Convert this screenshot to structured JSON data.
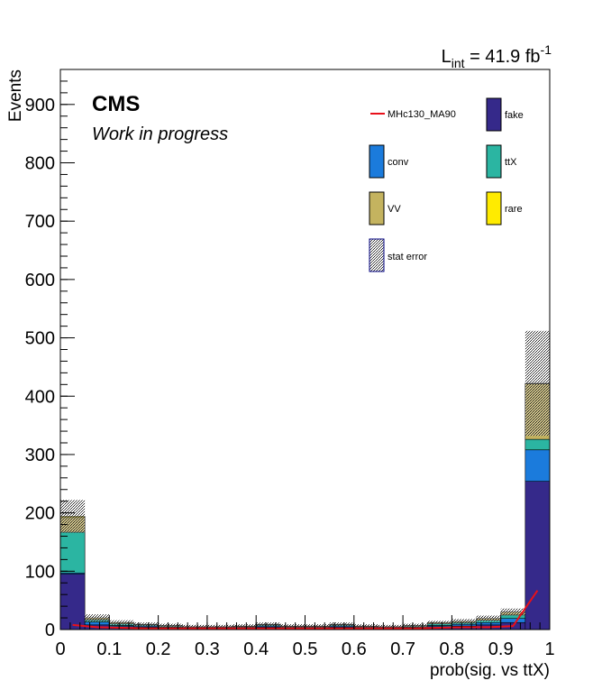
{
  "chart_data": {
    "type": "bar",
    "stacked": true,
    "title": "",
    "xlabel": "prob(sig. vs ttX)",
    "ylabel": "Events",
    "xlim": [
      0,
      1
    ],
    "ylim": [
      0,
      960
    ],
    "bin_width": 0.05,
    "bins": [
      0.0,
      0.05,
      0.1,
      0.15,
      0.2,
      0.25,
      0.3,
      0.35,
      0.4,
      0.45,
      0.5,
      0.55,
      0.6,
      0.65,
      0.7,
      0.75,
      0.8,
      0.85,
      0.9,
      0.95
    ],
    "x_ticks": [
      0,
      0.1,
      0.2,
      0.3,
      0.4,
      0.5,
      0.6,
      0.7,
      0.8,
      0.9,
      1
    ],
    "x_tick_labels": [
      "0",
      "0.1",
      "0.2",
      "0.3",
      "0.4",
      "0.5",
      "0.6",
      "0.7",
      "0.8",
      "0.9",
      "1"
    ],
    "y_ticks": [
      0,
      100,
      200,
      300,
      400,
      500,
      600,
      700,
      800,
      900
    ],
    "y_tick_labels": [
      "0",
      "100",
      "200",
      "300",
      "400",
      "500",
      "600",
      "700",
      "800",
      "900"
    ],
    "series": [
      {
        "name": "fake",
        "color": "#35298a",
        "values": [
          95,
          8,
          5,
          4,
          3,
          2,
          2,
          3,
          4,
          3,
          3,
          4,
          3,
          2,
          3,
          5,
          6,
          8,
          12,
          254
        ]
      },
      {
        "name": "conv",
        "color": "#1b7bdc",
        "values": [
          2,
          5,
          2,
          2,
          1,
          1,
          1,
          1,
          2,
          1,
          1,
          2,
          1,
          1,
          1,
          2,
          3,
          4,
          7,
          54
        ]
      },
      {
        "name": "ttX",
        "color": "#2bb5a2",
        "values": [
          70,
          4,
          3,
          2,
          2,
          1,
          1,
          1,
          2,
          1,
          1,
          2,
          1,
          1,
          2,
          3,
          3,
          4,
          6,
          18
        ]
      },
      {
        "name": "VV",
        "color": "#c4b35f",
        "values": [
          25,
          3,
          2,
          1,
          1,
          1,
          1,
          1,
          1,
          1,
          1,
          1,
          1,
          1,
          1,
          2,
          2,
          3,
          5,
          95
        ]
      },
      {
        "name": "rare",
        "color": "#ffeb00",
        "values": [
          2,
          0,
          0,
          0,
          0,
          0,
          0,
          0,
          0,
          0,
          0,
          0,
          0,
          0,
          0,
          0,
          0,
          0,
          0,
          1
        ]
      }
    ],
    "stat_error": {
      "name": "stat error",
      "values": [
        28,
        6,
        4,
        3,
        3,
        3,
        3,
        3,
        3,
        3,
        3,
        3,
        3,
        3,
        3,
        3,
        4,
        5,
        6,
        90
      ]
    },
    "signal": {
      "name": "MHc130_MA90",
      "color": "#e8101a",
      "values": [
        8,
        4,
        3,
        2,
        2,
        2,
        2,
        2,
        2,
        2,
        2,
        2,
        2,
        2,
        2,
        3,
        4,
        4,
        6,
        67
      ]
    },
    "legend_placement": "top-right",
    "annotations": {
      "experiment": "CMS",
      "status": "Work in progress",
      "lumi_main": "L",
      "lumi_sub": "int",
      "lumi_value": " = 41.9 fb",
      "lumi_sup": "-1"
    }
  }
}
